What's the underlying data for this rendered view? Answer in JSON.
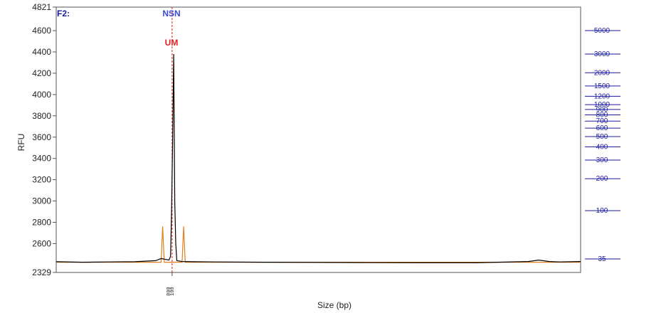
{
  "chart_data": {
    "type": "line",
    "panel_label": "F2:",
    "ylabel": "RFU",
    "xlabel": "Size (bp)",
    "ylim": [
      2329,
      4821
    ],
    "yticks": [
      2329,
      2600,
      2800,
      3000,
      3200,
      3400,
      3600,
      3800,
      4000,
      4200,
      4400,
      4600,
      4821
    ],
    "peak_annotations": [
      {
        "text": "NSN",
        "color": "#3a4bd8"
      },
      {
        "text": "UM",
        "color": "#e02020"
      }
    ],
    "marker_line_color": "#e02020",
    "ladder": {
      "color": "#1a1aa0",
      "labels": [
        "5000",
        "3000",
        "2000",
        "1500",
        "1200",
        "1000",
        "900",
        "800",
        "700",
        "600",
        "500",
        "400",
        "300",
        "200",
        "100",
        "35"
      ],
      "values": [
        5000,
        3000,
        2000,
        1500,
        1200,
        1000,
        900,
        800,
        700,
        600,
        500,
        400,
        300,
        200,
        100,
        35
      ]
    },
    "x_tick_labels": [
      "800",
      "100"
    ],
    "series": [
      {
        "color": "#000000",
        "x": [
          0,
          0.05,
          0.1,
          0.15,
          0.19,
          0.2,
          0.215,
          0.218,
          0.22,
          0.222,
          0.224,
          0.226,
          0.228,
          0.23,
          0.24,
          0.26,
          0.3,
          0.4,
          0.5,
          0.6,
          0.7,
          0.8,
          0.9,
          0.92,
          0.94,
          0.96,
          1.0
        ],
        "y": [
          2430,
          2425,
          2428,
          2430,
          2440,
          2460,
          2445,
          2480,
          2900,
          3560,
          4380,
          3000,
          2600,
          2440,
          2432,
          2430,
          2428,
          2425,
          2423,
          2421,
          2420,
          2420,
          2432,
          2445,
          2432,
          2428,
          2432
        ]
      },
      {
        "color": "#e08020",
        "x": [
          0,
          0.2,
          0.203,
          0.206,
          0.21,
          0.24,
          0.243,
          0.246,
          0.25,
          1.0
        ],
        "y": [
          2425,
          2425,
          2762,
          2425,
          2425,
          2425,
          2762,
          2425,
          2425,
          2425
        ]
      }
    ]
  }
}
